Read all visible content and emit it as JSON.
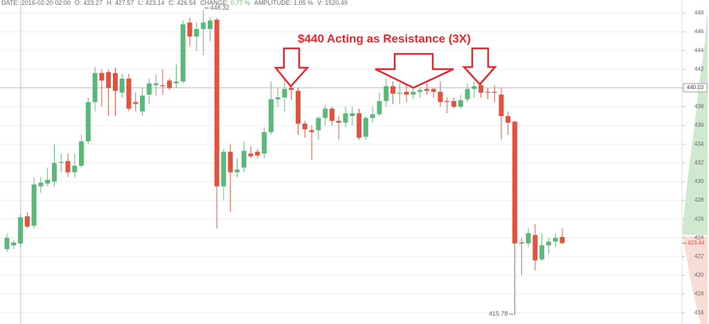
{
  "chart_data": {
    "type": "candlestick",
    "info": [
      {
        "label": "DATE:",
        "value": "2016-02-20  02:00"
      },
      {
        "label": "O:",
        "value": "423.27"
      },
      {
        "label": "H:",
        "value": "427.57"
      },
      {
        "label": "L:",
        "value": "423.14"
      },
      {
        "label": "C:",
        "value": "426.54"
      },
      {
        "label": "CHANGE:",
        "value": "0.77 %",
        "color": "#5cb85c"
      },
      {
        "label": "AMPLITUDE:",
        "value": "1.05 %"
      },
      {
        "label": "V:",
        "value": "1520.49"
      }
    ],
    "annotation": "$440 Acting as Resistance (3X)",
    "annotation_color": "#e8242a",
    "up_color": "#5cb87a",
    "down_color": "#e0533f",
    "price_line": 440.03,
    "ylim": [
      414.8,
      449.4
    ],
    "yticks": [
      416,
      418,
      420,
      422,
      424,
      426,
      428,
      430,
      432,
      434,
      436,
      438,
      440,
      442,
      444,
      446,
      448
    ],
    "grid": true,
    "categories": [
      null,
      null,
      null,
      null,
      null,
      null,
      null,
      null,
      null,
      null,
      null,
      null,
      null,
      null,
      null,
      null,
      null,
      null,
      null,
      null,
      null,
      null,
      null,
      null,
      null,
      null,
      null,
      null,
      null,
      null,
      null,
      null,
      null,
      null,
      null,
      null,
      null,
      null,
      null,
      null,
      null,
      null,
      null,
      null,
      null,
      null,
      null,
      null,
      null,
      null,
      null,
      null,
      null,
      null,
      null,
      null,
      null,
      null,
      null,
      null,
      null,
      null,
      null,
      null,
      null,
      null,
      null,
      null,
      null,
      null,
      null,
      null,
      null,
      null,
      null,
      null,
      null,
      null,
      null,
      null,
      null,
      null,
      null
    ],
    "open": [
      422.8,
      423.2,
      423.4,
      426.3,
      425.3,
      429.5,
      429.8,
      430,
      432,
      432.2,
      431,
      431.7,
      434.3,
      438.5,
      441.6,
      441.7,
      441.6,
      439.5,
      441,
      438.5,
      437.5,
      439.3,
      440.3,
      440.3,
      440.8,
      440.5,
      440.7,
      447,
      445.5,
      446.3,
      446.3,
      447.3,
      429.5,
      433.2,
      431,
      431.5,
      433,
      433.2,
      433,
      435.3,
      438.8,
      439,
      440,
      439.7,
      436.2,
      435.5,
      435.5,
      436.8,
      437.8,
      436.5,
      436.3,
      437,
      437.3,
      434.8,
      436.8,
      437.2,
      438.6,
      440.2,
      439.4,
      439.6,
      439.3,
      439.6,
      439.9,
      439.9,
      439.6,
      438.6,
      438.6,
      438,
      438.8,
      439.9,
      440.3,
      439.6,
      439.6,
      439.3,
      437,
      436.4,
      423.5,
      423.4,
      424.3,
      421.7,
      423.2,
      423.6,
      424.1
    ],
    "high": [
      424.5,
      423.8,
      426.5,
      426.8,
      430.5,
      430.5,
      431.5,
      434,
      433,
      433,
      433,
      435,
      439,
      442.3,
      442,
      442,
      442.2,
      441.5,
      441.5,
      439.5,
      440,
      441,
      441.5,
      442,
      441,
      442.5,
      447.2,
      447.5,
      447,
      448.32,
      447.5,
      447.5,
      433.5,
      434,
      432.5,
      434.3,
      433.8,
      433.5,
      435.8,
      440.7,
      440,
      441,
      440.5,
      440,
      436.5,
      436,
      437,
      438.2,
      438,
      437,
      438,
      438,
      437.8,
      437,
      438,
      439.5,
      441,
      440.7,
      440.5,
      440.3,
      440.5,
      440,
      440.5,
      440,
      440.7,
      439,
      439,
      439.3,
      440.5,
      440.8,
      442.3,
      440,
      440.3,
      440,
      437.5,
      436.5,
      424,
      425,
      425.5,
      424.5,
      424,
      424.5,
      425
    ],
    "low": [
      422.5,
      422.8,
      423,
      425,
      425,
      428.8,
      429.5,
      429.5,
      431,
      430.5,
      430.4,
      431.5,
      434,
      437.5,
      438,
      437,
      437,
      439,
      437.5,
      437.5,
      437,
      438.3,
      439.2,
      439.3,
      439.8,
      440,
      440.5,
      444.5,
      444,
      443.5,
      445,
      425,
      428,
      426.8,
      430.5,
      431,
      432.5,
      432.5,
      432.5,
      435,
      438,
      437.5,
      438.7,
      435,
      434.7,
      432.3,
      434.5,
      436,
      436,
      434.5,
      435.8,
      436,
      434.5,
      434.5,
      436.3,
      437,
      438,
      438.3,
      438.3,
      438.5,
      438.8,
      439,
      439.3,
      439,
      438,
      437.3,
      437.8,
      437.8,
      438.5,
      439,
      439,
      438.8,
      438.5,
      434.5,
      435,
      415.78,
      420,
      423,
      420.5,
      421.5,
      422.3,
      423,
      423.3
    ],
    "close": [
      424,
      423.5,
      426.2,
      425.2,
      429.7,
      429.9,
      430.2,
      432,
      432.1,
      431,
      431.7,
      434.3,
      438.5,
      441.6,
      440.8,
      440,
      439.7,
      441,
      437.8,
      438.3,
      439.2,
      440.5,
      440.5,
      440.2,
      440,
      440.7,
      446.8,
      445.5,
      446.3,
      447,
      447.2,
      429.5,
      433.2,
      431,
      431.3,
      433.3,
      432.7,
      432.8,
      435.3,
      438.8,
      439,
      439.9,
      439.8,
      436.2,
      435.6,
      435.3,
      436.8,
      437.8,
      436.5,
      436.3,
      437.3,
      437.3,
      434.7,
      436.8,
      437.2,
      438.6,
      440.2,
      439.4,
      439.5,
      439.3,
      439.6,
      439.8,
      439.7,
      439.6,
      438.5,
      438.5,
      438,
      438.7,
      439.9,
      440.2,
      439.5,
      439.5,
      439.5,
      437,
      436.3,
      423.4,
      423.4,
      424.5,
      421.6,
      423.2,
      423.6,
      424,
      423.44
    ]
  }
}
